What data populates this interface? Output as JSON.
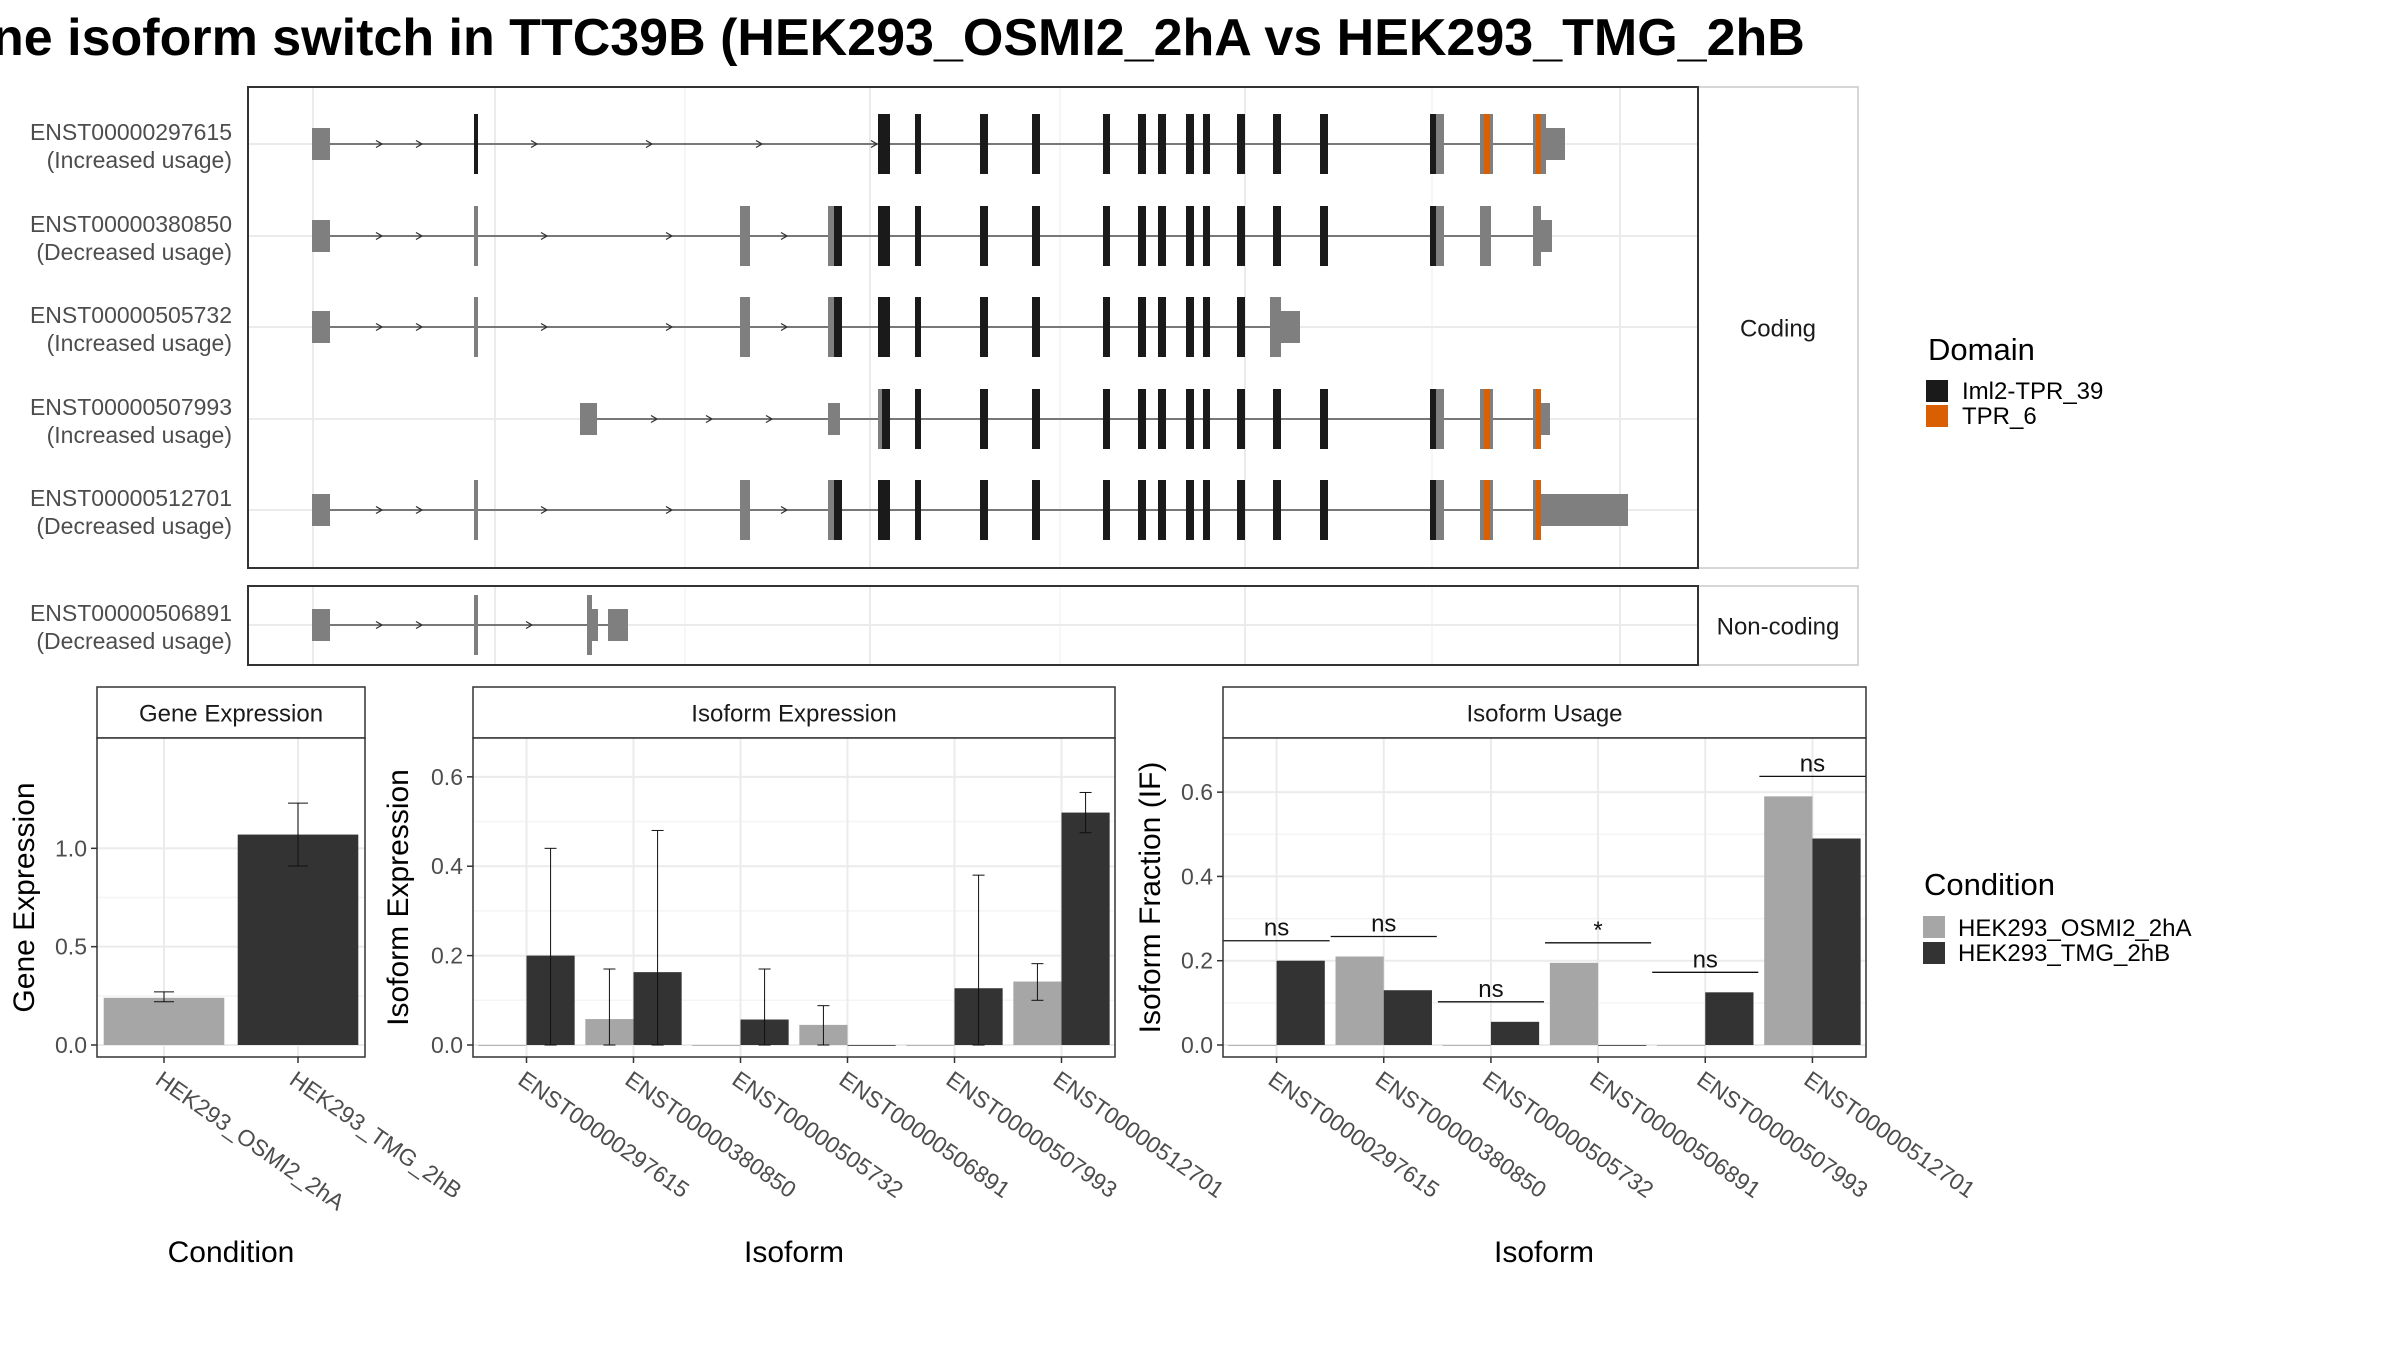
{
  "title": "ne isoform switch in TTC39B (HEK293_OSMI2_2hA vs HEK293_TMG_2hB",
  "colors": {
    "domain_iml2": "#1a1a1a",
    "domain_tpr6": "#d95f02",
    "noncoding_exon": "#7f7f7f",
    "cond_a": "#a6a6a6",
    "cond_b": "#333333",
    "grid": "#ebebeb",
    "strip_bg": "#ffffff",
    "panel_border": "#333333"
  },
  "chart_data": [
    {
      "type": "gene_structure",
      "facets": [
        "Coding",
        "Non-coding"
      ],
      "legend_title": "Domain",
      "legend_items": [
        {
          "label": "Iml2-TPR_39",
          "color": "#1a1a1a"
        },
        {
          "label": "TPR_6",
          "color": "#d95f02"
        }
      ],
      "transcripts": [
        {
          "id": "ENST00000297615",
          "usage": "(Increased usage)",
          "facet": "Coding"
        },
        {
          "id": "ENST00000380850",
          "usage": "(Decreased usage)",
          "facet": "Coding"
        },
        {
          "id": "ENST00000505732",
          "usage": "(Increased usage)",
          "facet": "Coding"
        },
        {
          "id": "ENST00000507993",
          "usage": "(Increased usage)",
          "facet": "Coding"
        },
        {
          "id": "ENST00000512701",
          "usage": "(Decreased usage)",
          "facet": "Coding"
        },
        {
          "id": "ENST00000506891",
          "usage": "(Decreased usage)",
          "facet": "Non-coding"
        }
      ]
    },
    {
      "type": "bar",
      "strip": "Gene Expression",
      "xlabel": "Condition",
      "ylabel": "Gene Expression",
      "ylim": [
        0,
        1.5
      ],
      "yticks": [
        0.0,
        0.5,
        1.0
      ],
      "ytick_labels": [
        "0.0",
        "0.5",
        "1.0"
      ],
      "categories": [
        "HEK293_OSMI2_2hA",
        "HEK293_TMG_2hB"
      ],
      "values": [
        0.24,
        1.07
      ],
      "errors": [
        [
          0.22,
          0.27
        ],
        [
          0.91,
          1.23
        ]
      ]
    },
    {
      "type": "bar",
      "strip": "Isoform Expression",
      "xlabel": "Isoform",
      "ylabel": "Isoform Expression",
      "ylim": [
        0,
        0.66
      ],
      "yticks": [
        0.0,
        0.2,
        0.4,
        0.6
      ],
      "ytick_labels": [
        "0.0",
        "0.2",
        "0.4",
        "0.6"
      ],
      "categories": [
        "ENST00000297615",
        "ENST00000380850",
        "ENST00000505732",
        "ENST00000506891",
        "ENST00000507993",
        "ENST00000512701"
      ],
      "series": [
        {
          "name": "HEK293_OSMI2_2hA",
          "values": [
            0.0,
            0.058,
            0.0,
            0.045,
            0.0,
            0.142
          ],
          "errors": [
            [
              0.0,
              0.0
            ],
            [
              0.0,
              0.17
            ],
            [
              0.0,
              0.0
            ],
            [
              0.0,
              0.088
            ],
            [
              0.0,
              0.0
            ],
            [
              0.1,
              0.182
            ]
          ]
        },
        {
          "name": "HEK293_TMG_2hB",
          "values": [
            0.2,
            0.163,
            0.057,
            0.0,
            0.127,
            0.52
          ],
          "errors": [
            [
              0.0,
              0.44
            ],
            [
              0.0,
              0.48
            ],
            [
              0.0,
              0.17
            ],
            [
              0.0,
              0.0
            ],
            [
              0.0,
              0.38
            ],
            [
              0.475,
              0.565
            ]
          ]
        }
      ]
    },
    {
      "type": "bar",
      "strip": "Isoform Usage",
      "xlabel": "Isoform",
      "ylabel": "Isoform Fraction (IF)",
      "ylim": [
        0,
        0.7
      ],
      "yticks": [
        0.0,
        0.2,
        0.4,
        0.6
      ],
      "ytick_labels": [
        "0.0",
        "0.2",
        "0.4",
        "0.6"
      ],
      "categories": [
        "ENST00000297615",
        "ENST00000380850",
        "ENST00000505732",
        "ENST00000506891",
        "ENST00000507993",
        "ENST00000512701"
      ],
      "series": [
        {
          "name": "HEK293_OSMI2_2hA",
          "values": [
            0.0,
            0.21,
            0.0,
            0.195,
            0.0,
            0.59
          ]
        },
        {
          "name": "HEK293_TMG_2hB",
          "values": [
            0.2,
            0.13,
            0.055,
            0.0,
            0.125,
            0.49
          ]
        }
      ],
      "significance": [
        "ns",
        "ns",
        "ns",
        "*",
        "ns",
        "ns"
      ]
    }
  ],
  "condition_legend": {
    "title": "Condition",
    "items": [
      {
        "label": "HEK293_OSMI2_2hA",
        "color": "#a6a6a6"
      },
      {
        "label": "HEK293_TMG_2hB",
        "color": "#333333"
      }
    ]
  }
}
